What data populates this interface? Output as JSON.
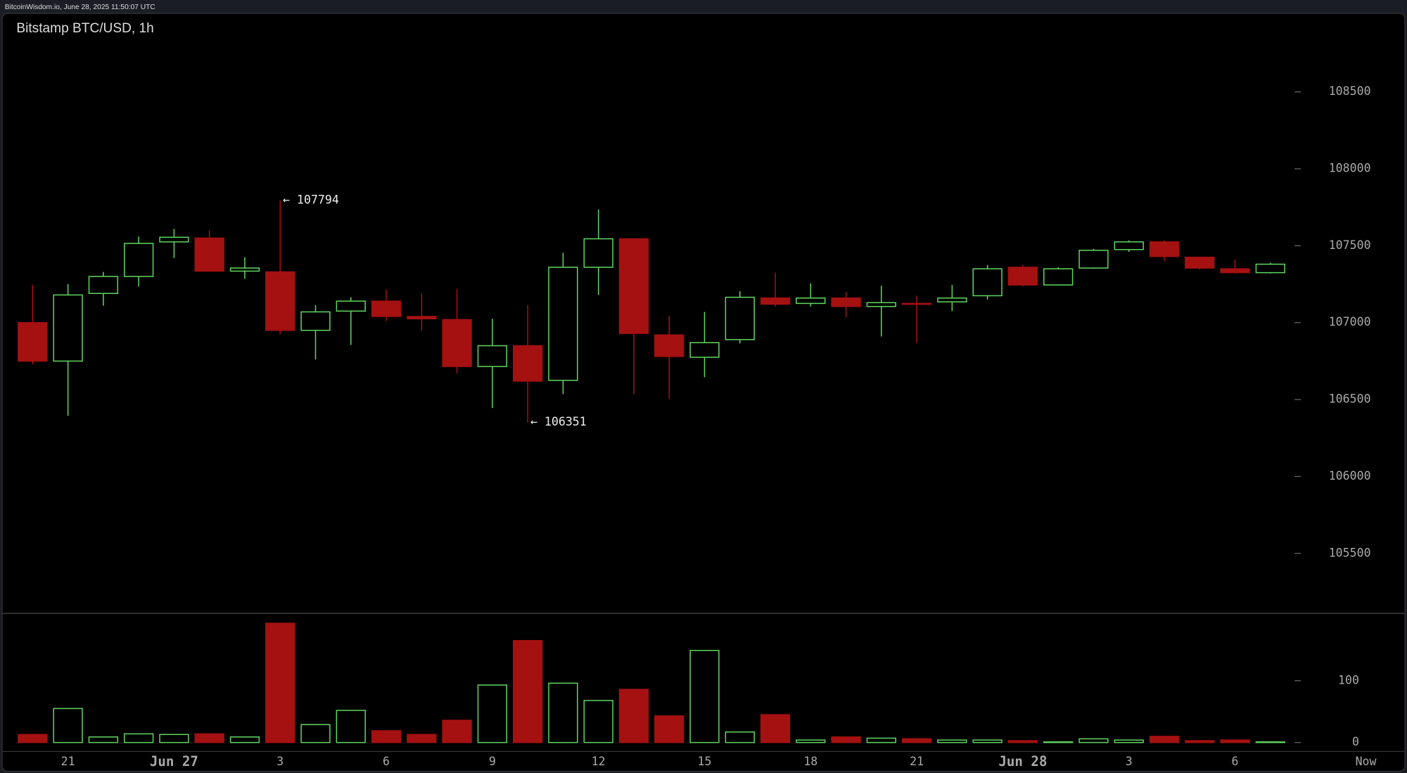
{
  "header": {
    "text": "BitcoinWisdom.io, June 28, 2025 11:50:07 UTC"
  },
  "chart_data": {
    "type": "candlestick",
    "title": "Bitstamp BTC/USD, 1h",
    "categories": [
      null,
      "21",
      null,
      null,
      "Jun 27",
      null,
      null,
      "3",
      null,
      null,
      "6",
      null,
      null,
      "9",
      null,
      null,
      "12",
      null,
      null,
      "15",
      null,
      null,
      "18",
      null,
      null,
      "21",
      null,
      null,
      "Jun 28",
      null,
      null,
      "3",
      null,
      null,
      "6",
      null
    ],
    "open": [
      107000,
      106750,
      107190,
      107300,
      107525,
      107550,
      107335,
      107330,
      106950,
      107075,
      107140,
      107040,
      107020,
      106715,
      106850,
      106625,
      107360,
      107545,
      106920,
      106775,
      106890,
      107160,
      107125,
      107160,
      107105,
      107125,
      107135,
      107175,
      107360,
      107245,
      107355,
      107475,
      107525,
      107425,
      107350,
      107325
    ],
    "high": [
      107245,
      107250,
      107330,
      107560,
      107610,
      107600,
      107425,
      107794,
      107115,
      107165,
      107215,
      107190,
      107220,
      107025,
      107115,
      107455,
      107735,
      107545,
      107045,
      107070,
      107205,
      107325,
      107255,
      107200,
      107240,
      107175,
      107245,
      107375,
      107375,
      107360,
      107480,
      107535,
      107535,
      107425,
      107410,
      107390
    ],
    "low": [
      106730,
      106395,
      107110,
      107235,
      107420,
      107335,
      107285,
      106925,
      106760,
      106855,
      107010,
      106950,
      106670,
      106445,
      106351,
      106535,
      107180,
      106535,
      106505,
      106645,
      106865,
      107105,
      107105,
      107035,
      106910,
      106870,
      107075,
      107150,
      107235,
      107245,
      107350,
      107460,
      107400,
      107345,
      107320,
      107320
    ],
    "close": [
      106750,
      107180,
      107300,
      107515,
      107555,
      107335,
      107355,
      106950,
      107070,
      107140,
      107040,
      107025,
      106715,
      106850,
      106620,
      107360,
      107545,
      106930,
      106780,
      106870,
      107165,
      107120,
      107160,
      107105,
      107130,
      107120,
      107160,
      107350,
      107245,
      107350,
      107470,
      107525,
      107430,
      107355,
      107325,
      107380
    ],
    "volume": [
      13,
      55,
      9,
      14,
      13,
      14,
      9,
      193,
      29,
      52,
      19,
      13,
      36,
      93,
      165,
      96,
      68,
      86,
      43,
      149,
      17,
      45,
      4,
      9,
      7,
      6,
      4,
      4,
      3,
      1,
      6,
      4,
      10,
      3,
      4,
      1
    ],
    "up_color": "#5fd35f",
    "down_color": "#a51111",
    "ylim": [
      105110,
      109010
    ],
    "yticks": [
      105500,
      106000,
      106500,
      107000,
      107500,
      108000,
      108500
    ],
    "volume_ylim": [
      0,
      209
    ],
    "volume_yticks": [
      0,
      100
    ],
    "annotations": [
      {
        "value": 107794,
        "label": "← 107794"
      },
      {
        "value": 106351,
        "label": "← 106351"
      }
    ],
    "now_label": "Now"
  }
}
